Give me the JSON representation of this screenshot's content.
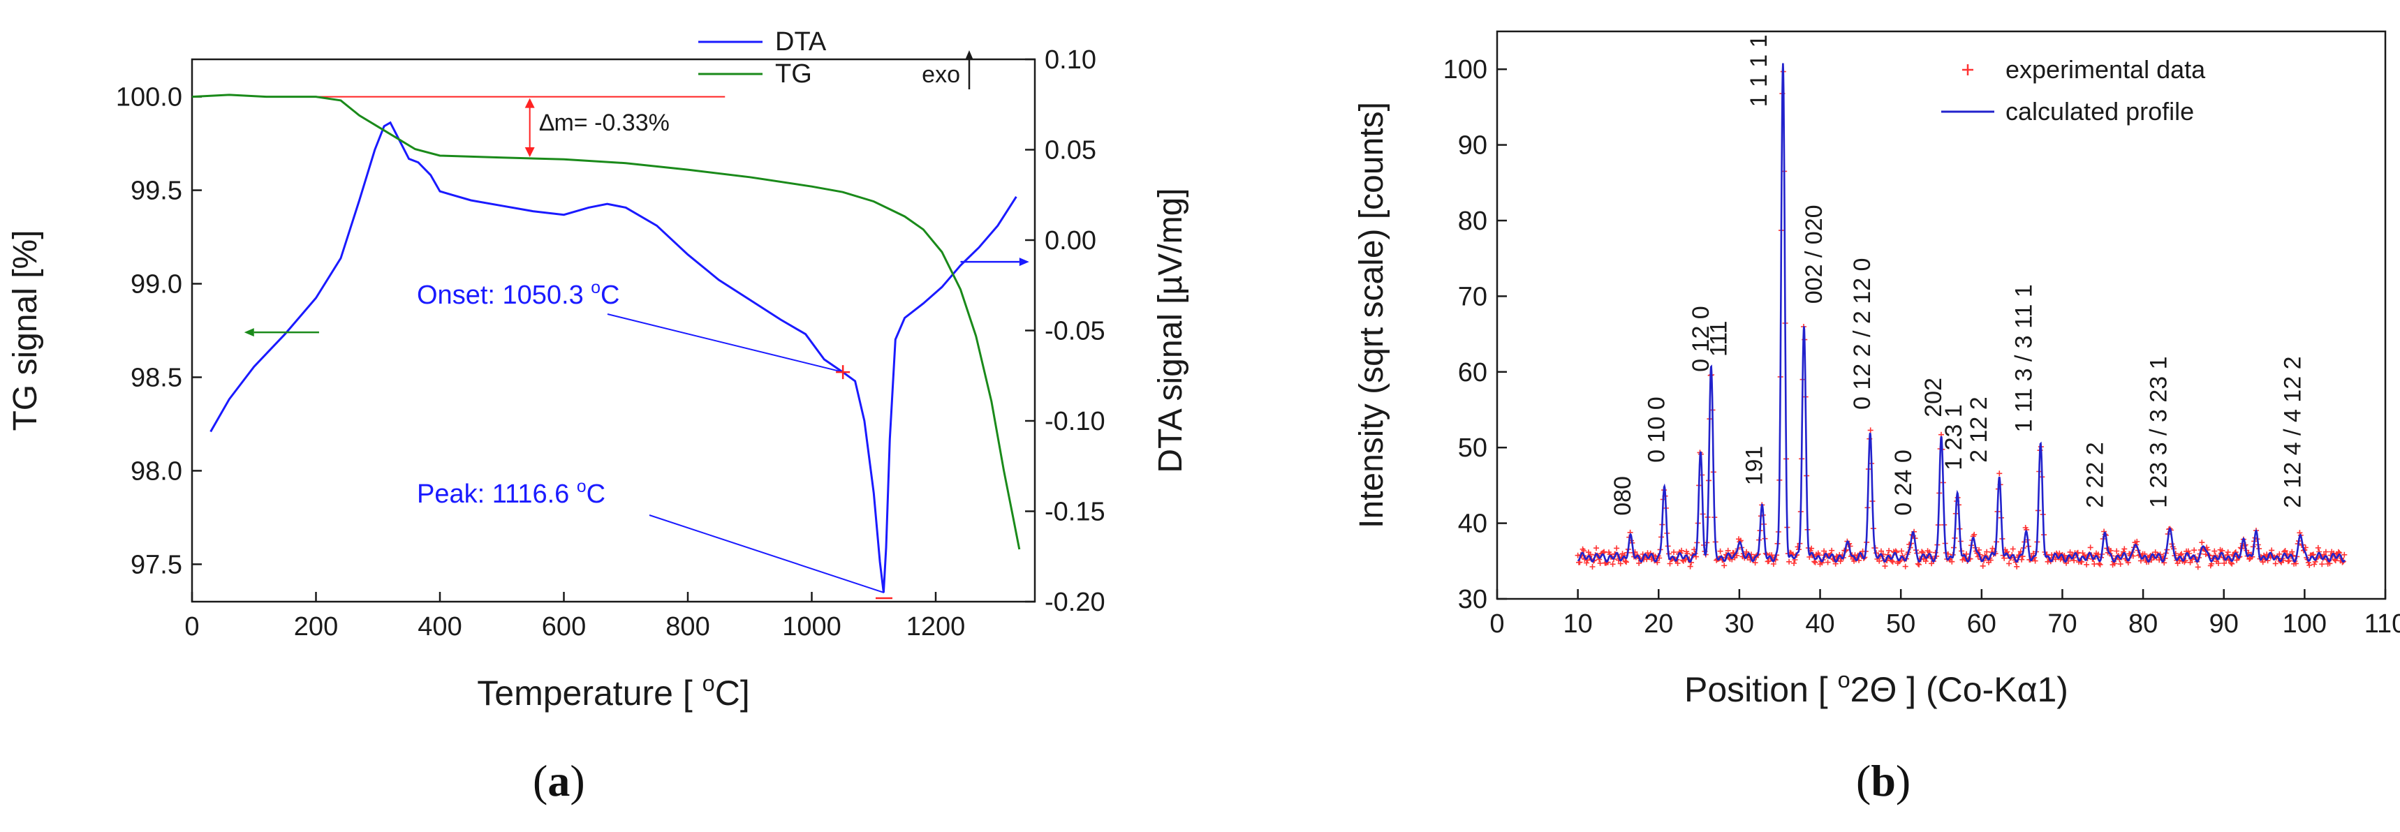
{
  "chart_data": [
    {
      "panel": "(a)",
      "panel_letter": "a",
      "type": "line",
      "xlabel": "Temperature   [ °C]",
      "xlabel_parts": {
        "main": "Temperature   [ ",
        "sup": "o",
        "end": "C]"
      },
      "ylabel_left": "TG signal   [%]",
      "ylabel_right": "DTA signal   [µV/mg]",
      "xlim": [
        0,
        1360
      ],
      "ylim_left": [
        97.3,
        100.2
      ],
      "ylim_right": [
        -0.2,
        0.1
      ],
      "xticks": [
        0,
        200,
        400,
        600,
        800,
        1000,
        1200
      ],
      "yticks_left": [
        97.5,
        98.0,
        98.5,
        99.0,
        99.5,
        100.0
      ],
      "yticks_right": [
        -0.2,
        -0.15,
        -0.1,
        -0.05,
        0.0,
        0.05,
        0.1
      ],
      "series": [
        {
          "name": "DTA",
          "axis": "right",
          "color": "#1a1aff",
          "points": [
            [
              30,
              -0.106
            ],
            [
              60,
              -0.088
            ],
            [
              100,
              -0.07
            ],
            [
              150,
              -0.052
            ],
            [
              200,
              -0.032
            ],
            [
              240,
              -0.01
            ],
            [
              270,
              0.022
            ],
            [
              295,
              0.05
            ],
            [
              310,
              0.063
            ],
            [
              320,
              0.065
            ],
            [
              335,
              0.055
            ],
            [
              350,
              0.045
            ],
            [
              365,
              0.043
            ],
            [
              385,
              0.036
            ],
            [
              400,
              0.027
            ],
            [
              420,
              0.025
            ],
            [
              450,
              0.022
            ],
            [
              500,
              0.019
            ],
            [
              550,
              0.016
            ],
            [
              600,
              0.014
            ],
            [
              640,
              0.018
            ],
            [
              670,
              0.02
            ],
            [
              700,
              0.018
            ],
            [
              750,
              0.008
            ],
            [
              800,
              -0.008
            ],
            [
              850,
              -0.022
            ],
            [
              900,
              -0.033
            ],
            [
              950,
              -0.044
            ],
            [
              990,
              -0.052
            ],
            [
              1020,
              -0.066
            ],
            [
              1050,
              -0.073
            ],
            [
              1070,
              -0.078
            ],
            [
              1085,
              -0.1
            ],
            [
              1100,
              -0.14
            ],
            [
              1110,
              -0.178
            ],
            [
              1116,
              -0.195
            ],
            [
              1120,
              -0.17
            ],
            [
              1126,
              -0.11
            ],
            [
              1135,
              -0.055
            ],
            [
              1150,
              -0.043
            ],
            [
              1180,
              -0.035
            ],
            [
              1210,
              -0.026
            ],
            [
              1240,
              -0.014
            ],
            [
              1270,
              -0.004
            ],
            [
              1300,
              0.008
            ],
            [
              1330,
              0.024
            ]
          ]
        },
        {
          "name": "TG",
          "axis": "left",
          "color": "#1a8a1a",
          "points": [
            [
              0,
              100.0
            ],
            [
              60,
              100.01
            ],
            [
              120,
              100.0
            ],
            [
              200,
              100.0
            ],
            [
              240,
              99.98
            ],
            [
              270,
              99.9
            ],
            [
              310,
              99.82
            ],
            [
              360,
              99.72
            ],
            [
              400,
              99.685
            ],
            [
              500,
              99.675
            ],
            [
              600,
              99.665
            ],
            [
              700,
              99.645
            ],
            [
              800,
              99.61
            ],
            [
              900,
              99.57
            ],
            [
              1000,
              99.52
            ],
            [
              1050,
              99.49
            ],
            [
              1100,
              99.44
            ],
            [
              1150,
              99.36
            ],
            [
              1180,
              99.29
            ],
            [
              1210,
              99.17
            ],
            [
              1240,
              98.97
            ],
            [
              1265,
              98.72
            ],
            [
              1290,
              98.37
            ],
            [
              1310,
              98.0
            ],
            [
              1325,
              97.75
            ],
            [
              1335,
              97.58
            ]
          ]
        }
      ],
      "annotations": {
        "mass_loss": "∆m= -0.33%",
        "onset_label": "Onset: 1050.3",
        "onset_unit": "C",
        "onset_x": 1050.3,
        "onset_y": -0.073,
        "peak_label": "Peak: 1116.6",
        "peak_unit": "C",
        "peak_x": 1116.6,
        "peak_y": -0.195,
        "exo_label": "exo",
        "degree_sup": "o",
        "dta_legend": "DTA",
        "tg_legend": "TG",
        "ref_line_y": 100.0,
        "ref_line_x": [
          130,
          860
        ]
      }
    },
    {
      "panel": "(b)",
      "panel_letter": "b",
      "type": "line",
      "xlabel": "Position     [ °2Θ ] (Co-Kα1)",
      "xlabel_parts": {
        "main": "Position     [ ",
        "sup": "o",
        "end": "2Θ ] (Co-Kα1)"
      },
      "ylabel": "Intensity (sqrt scale)  [counts]",
      "xlim": [
        0,
        110
      ],
      "ylim": [
        30,
        105
      ],
      "xticks": [
        0,
        10,
        20,
        30,
        40,
        50,
        60,
        70,
        80,
        90,
        100,
        110
      ],
      "yticks": [
        30,
        40,
        50,
        60,
        70,
        80,
        90,
        100
      ],
      "baseline": 35.5,
      "x_range": [
        10,
        105
      ],
      "legend": [
        "experimental data",
        "calculated profile"
      ],
      "colors": {
        "experimental": "#ff3333",
        "calculated": "#2222cc"
      },
      "peaks": [
        [
          16.5,
          38
        ],
        [
          20.7,
          44.5
        ],
        [
          25.2,
          49
        ],
        [
          26.5,
          61
        ],
        [
          30.0,
          38
        ],
        [
          32.8,
          42
        ],
        [
          35.4,
          100.5
        ],
        [
          38.0,
          66
        ],
        [
          43.5,
          37.5
        ],
        [
          46.2,
          52.5
        ],
        [
          51.5,
          39
        ],
        [
          55.0,
          51.5
        ],
        [
          57.0,
          43.5
        ],
        [
          59.0,
          38
        ],
        [
          62.2,
          46
        ],
        [
          65.5,
          38.5
        ],
        [
          67.3,
          50
        ],
        [
          75.3,
          38.5
        ],
        [
          79.0,
          37.5
        ],
        [
          83.3,
          39.5
        ],
        [
          87.5,
          37
        ],
        [
          92.5,
          38
        ],
        [
          94.0,
          38.5
        ],
        [
          99.5,
          38.5
        ]
      ],
      "peak_labels": [
        {
          "text": "080",
          "x": 16.5,
          "y": 41
        },
        {
          "text": "0 10 0",
          "x": 20.7,
          "y": 48
        },
        {
          "text": "0 12 0",
          "x": 26.2,
          "y": 60
        },
        {
          "text": "111",
          "x": 28.4,
          "y": 62
        },
        {
          "text": "191",
          "x": 32.8,
          "y": 45
        },
        {
          "text": "1 1 1 1",
          "x": 33.4,
          "y": 95
        },
        {
          "text": "002 / 020",
          "x": 40.2,
          "y": 69
        },
        {
          "text": "0 12 2 / 2 12 0",
          "x": 46.2,
          "y": 55
        },
        {
          "text": "0 24 0",
          "x": 51.3,
          "y": 41
        },
        {
          "text": "202",
          "x": 55.0,
          "y": 54
        },
        {
          "text": "1 23 1",
          "x": 57.5,
          "y": 47
        },
        {
          "text": "2 12 2",
          "x": 60.6,
          "y": 48
        },
        {
          "text": "1 11 3 / 3 11 1",
          "x": 66.2,
          "y": 52
        },
        {
          "text": "2 22 2",
          "x": 75.0,
          "y": 42
        },
        {
          "text": "1 23 3 / 3 23 1",
          "x": 82.9,
          "y": 42
        },
        {
          "text": "2 12 4 / 4 12 2",
          "x": 99.5,
          "y": 42
        }
      ]
    }
  ]
}
